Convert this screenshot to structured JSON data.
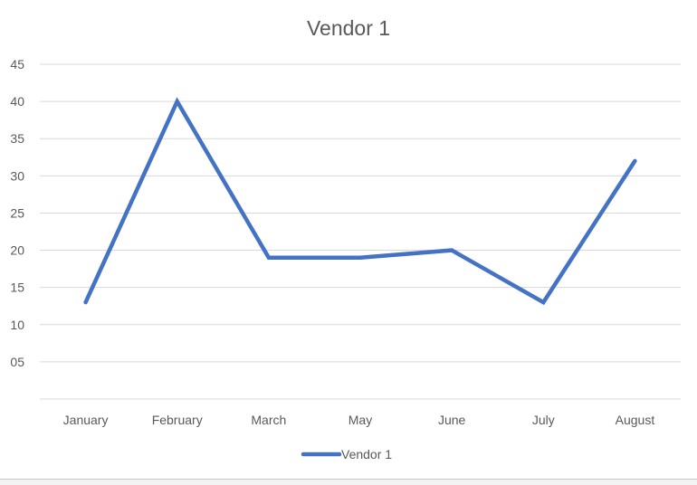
{
  "chart_data": {
    "type": "line",
    "title": "Vendor 1",
    "categories": [
      "January",
      "February",
      "March",
      "May",
      "June",
      "July",
      "August"
    ],
    "series": [
      {
        "name": "Vendor 1",
        "values": [
          13,
          40,
          19,
          19,
          20,
          13,
          32
        ],
        "color": "#4472c4"
      }
    ],
    "y_ticks": [
      "05",
      "10",
      "15",
      "20",
      "25",
      "30",
      "35",
      "40",
      "45"
    ],
    "y_tick_values": [
      5,
      10,
      15,
      20,
      25,
      30,
      35,
      40,
      45
    ],
    "ylim": [
      0,
      45
    ],
    "grid": true,
    "legend": {
      "position": "bottom",
      "label": "Vendor 1"
    },
    "xlabel": "",
    "ylabel": ""
  }
}
